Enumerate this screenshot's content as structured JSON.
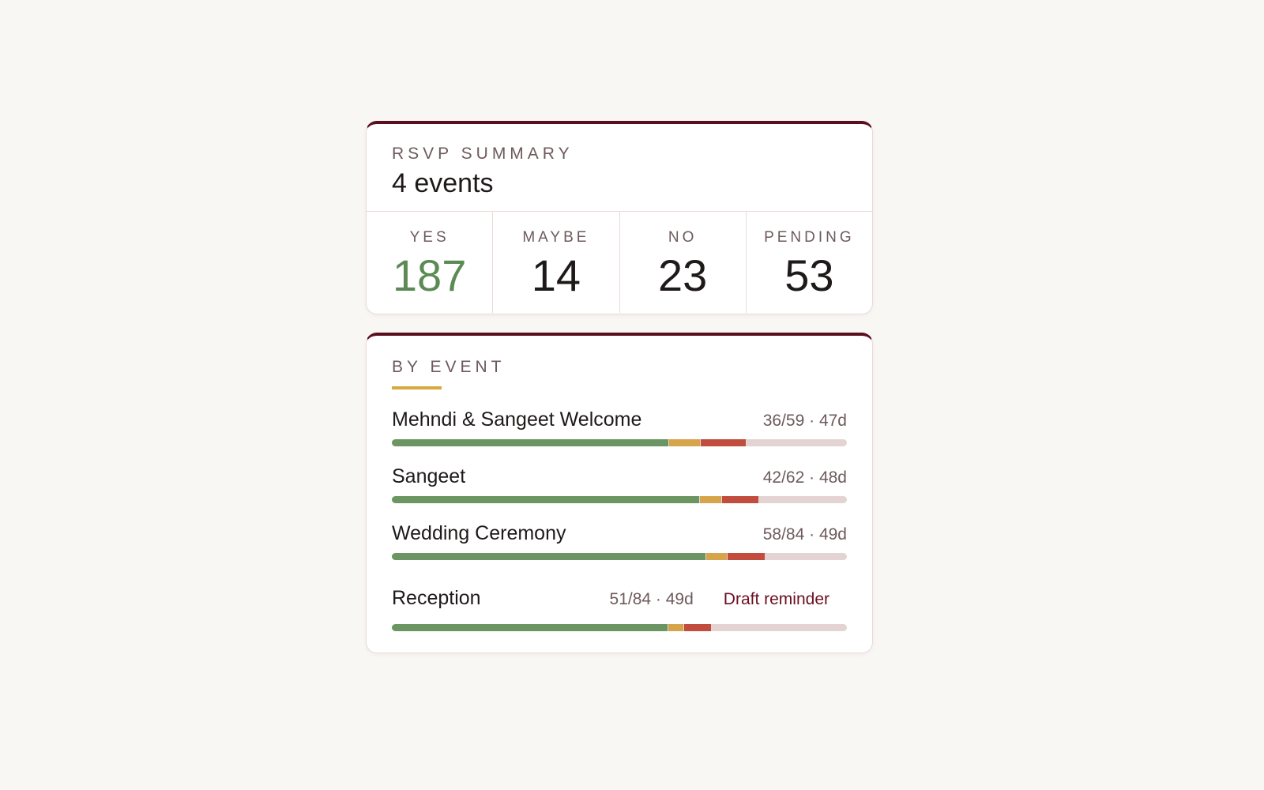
{
  "header": {
    "eyebrow": "RSVP SUMMARY",
    "title": "4 events"
  },
  "stats": [
    {
      "label": "YES",
      "value": 187
    },
    {
      "label": "MAYBE",
      "value": 14
    },
    {
      "label": "NO",
      "value": 23
    },
    {
      "label": "PENDING",
      "value": 53
    }
  ],
  "by_event": {
    "title": "BY EVENT",
    "events": [
      {
        "name": "Mehndi & Sangeet Welcome",
        "meta": "36/59 · 47d",
        "yes": 36,
        "maybe": 4,
        "no": 6,
        "total": 59
      },
      {
        "name": "Sangeet",
        "meta": "42/62 · 48d",
        "yes": 42,
        "maybe": 3,
        "no": 5,
        "total": 62
      },
      {
        "name": "Wedding Ceremony",
        "meta": "58/84 · 49d",
        "yes": 58,
        "maybe": 4,
        "no": 7,
        "total": 84
      },
      {
        "name": "Reception",
        "meta": "51/84 · 49d",
        "yes": 51,
        "maybe": 3,
        "no": 5,
        "total": 84,
        "action": "Draft reminder"
      }
    ]
  }
}
